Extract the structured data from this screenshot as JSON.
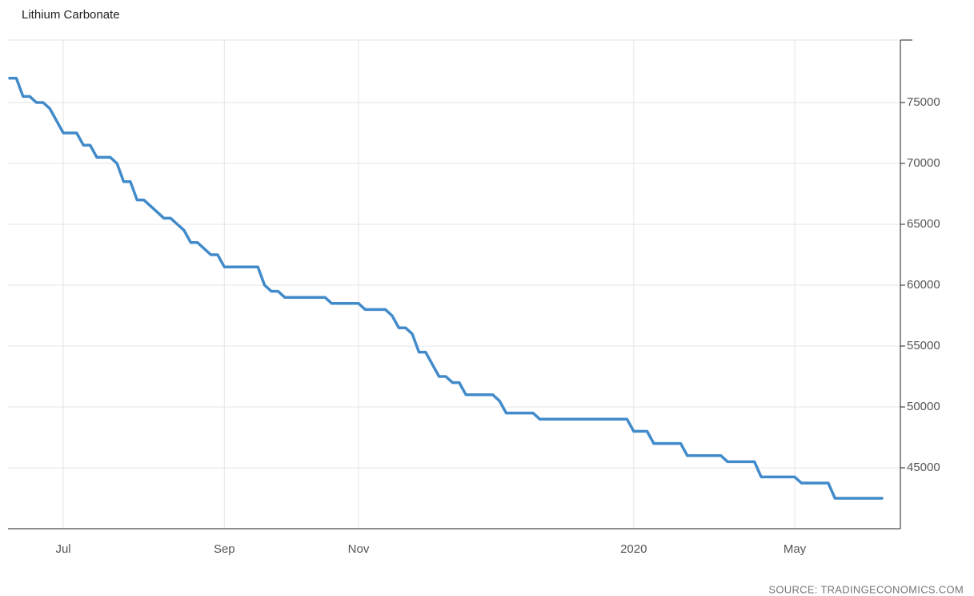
{
  "chart_data": {
    "type": "line",
    "title": "Lithium Carbonate",
    "source": "SOURCE: TRADINGECONOMICS.COM",
    "categories": [
      null,
      null,
      null,
      null,
      null,
      null,
      null,
      null,
      "Jul",
      null,
      null,
      null,
      null,
      null,
      null,
      null,
      null,
      null,
      null,
      null,
      null,
      null,
      null,
      null,
      null,
      null,
      null,
      null,
      null,
      null,
      null,
      null,
      "Sep",
      null,
      null,
      null,
      null,
      null,
      null,
      null,
      null,
      null,
      null,
      null,
      null,
      null,
      null,
      null,
      null,
      null,
      null,
      null,
      "Nov",
      null,
      null,
      null,
      null,
      null,
      null,
      null,
      null,
      null,
      null,
      null,
      null,
      null,
      null,
      null,
      null,
      null,
      null,
      null,
      null,
      null,
      null,
      null,
      null,
      null,
      null,
      null,
      null,
      null,
      null,
      null,
      null,
      null,
      null,
      null,
      null,
      null,
      null,
      null,
      null,
      "2020",
      null,
      null,
      null,
      null,
      null,
      null,
      null,
      null,
      null,
      null,
      null,
      null,
      null,
      null,
      null,
      null,
      null,
      null,
      null,
      null,
      null,
      null,
      null,
      "May",
      null,
      null,
      null,
      null,
      null,
      null,
      null,
      null,
      null,
      null,
      null,
      null,
      null
    ],
    "series": [
      {
        "name": "Lithium Carbonate",
        "color": "#428bca",
        "values": [
          77000,
          77000,
          75500,
          75500,
          75000,
          75000,
          74500,
          73500,
          72500,
          72500,
          72500,
          71500,
          71500,
          70500,
          70500,
          70500,
          70000,
          68500,
          68500,
          67000,
          67000,
          66500,
          66000,
          65500,
          65500,
          65000,
          64500,
          63500,
          63500,
          63000,
          62500,
          62500,
          61500,
          61500,
          61500,
          61500,
          61500,
          61500,
          60000,
          59500,
          59500,
          59000,
          59000,
          59000,
          59000,
          59000,
          59000,
          59000,
          58500,
          58500,
          58500,
          58500,
          58500,
          58000,
          58000,
          58000,
          58000,
          57500,
          56500,
          56500,
          56000,
          54500,
          54500,
          53500,
          52500,
          52500,
          52000,
          52000,
          51000,
          51000,
          51000,
          51000,
          51000,
          50500,
          49500,
          49500,
          49500,
          49500,
          49500,
          49000,
          49000,
          49000,
          49000,
          49000,
          49000,
          49000,
          49000,
          49000,
          49000,
          49000,
          49000,
          49000,
          49000,
          48000,
          48000,
          48000,
          47000,
          47000,
          47000,
          47000,
          47000,
          46000,
          46000,
          46000,
          46000,
          46000,
          46000,
          45500,
          45500,
          45500,
          45500,
          45500,
          44250,
          44250,
          44250,
          44250,
          44250,
          44250,
          43750,
          43750,
          43750,
          43750,
          43750,
          42500,
          42500,
          42500,
          42500,
          42500,
          42500,
          42500,
          42500
        ]
      }
    ],
    "ylim": [
      40000,
      80000
    ],
    "yticks": [
      45000,
      50000,
      55000,
      60000,
      65000,
      70000,
      75000
    ],
    "grid": true
  }
}
